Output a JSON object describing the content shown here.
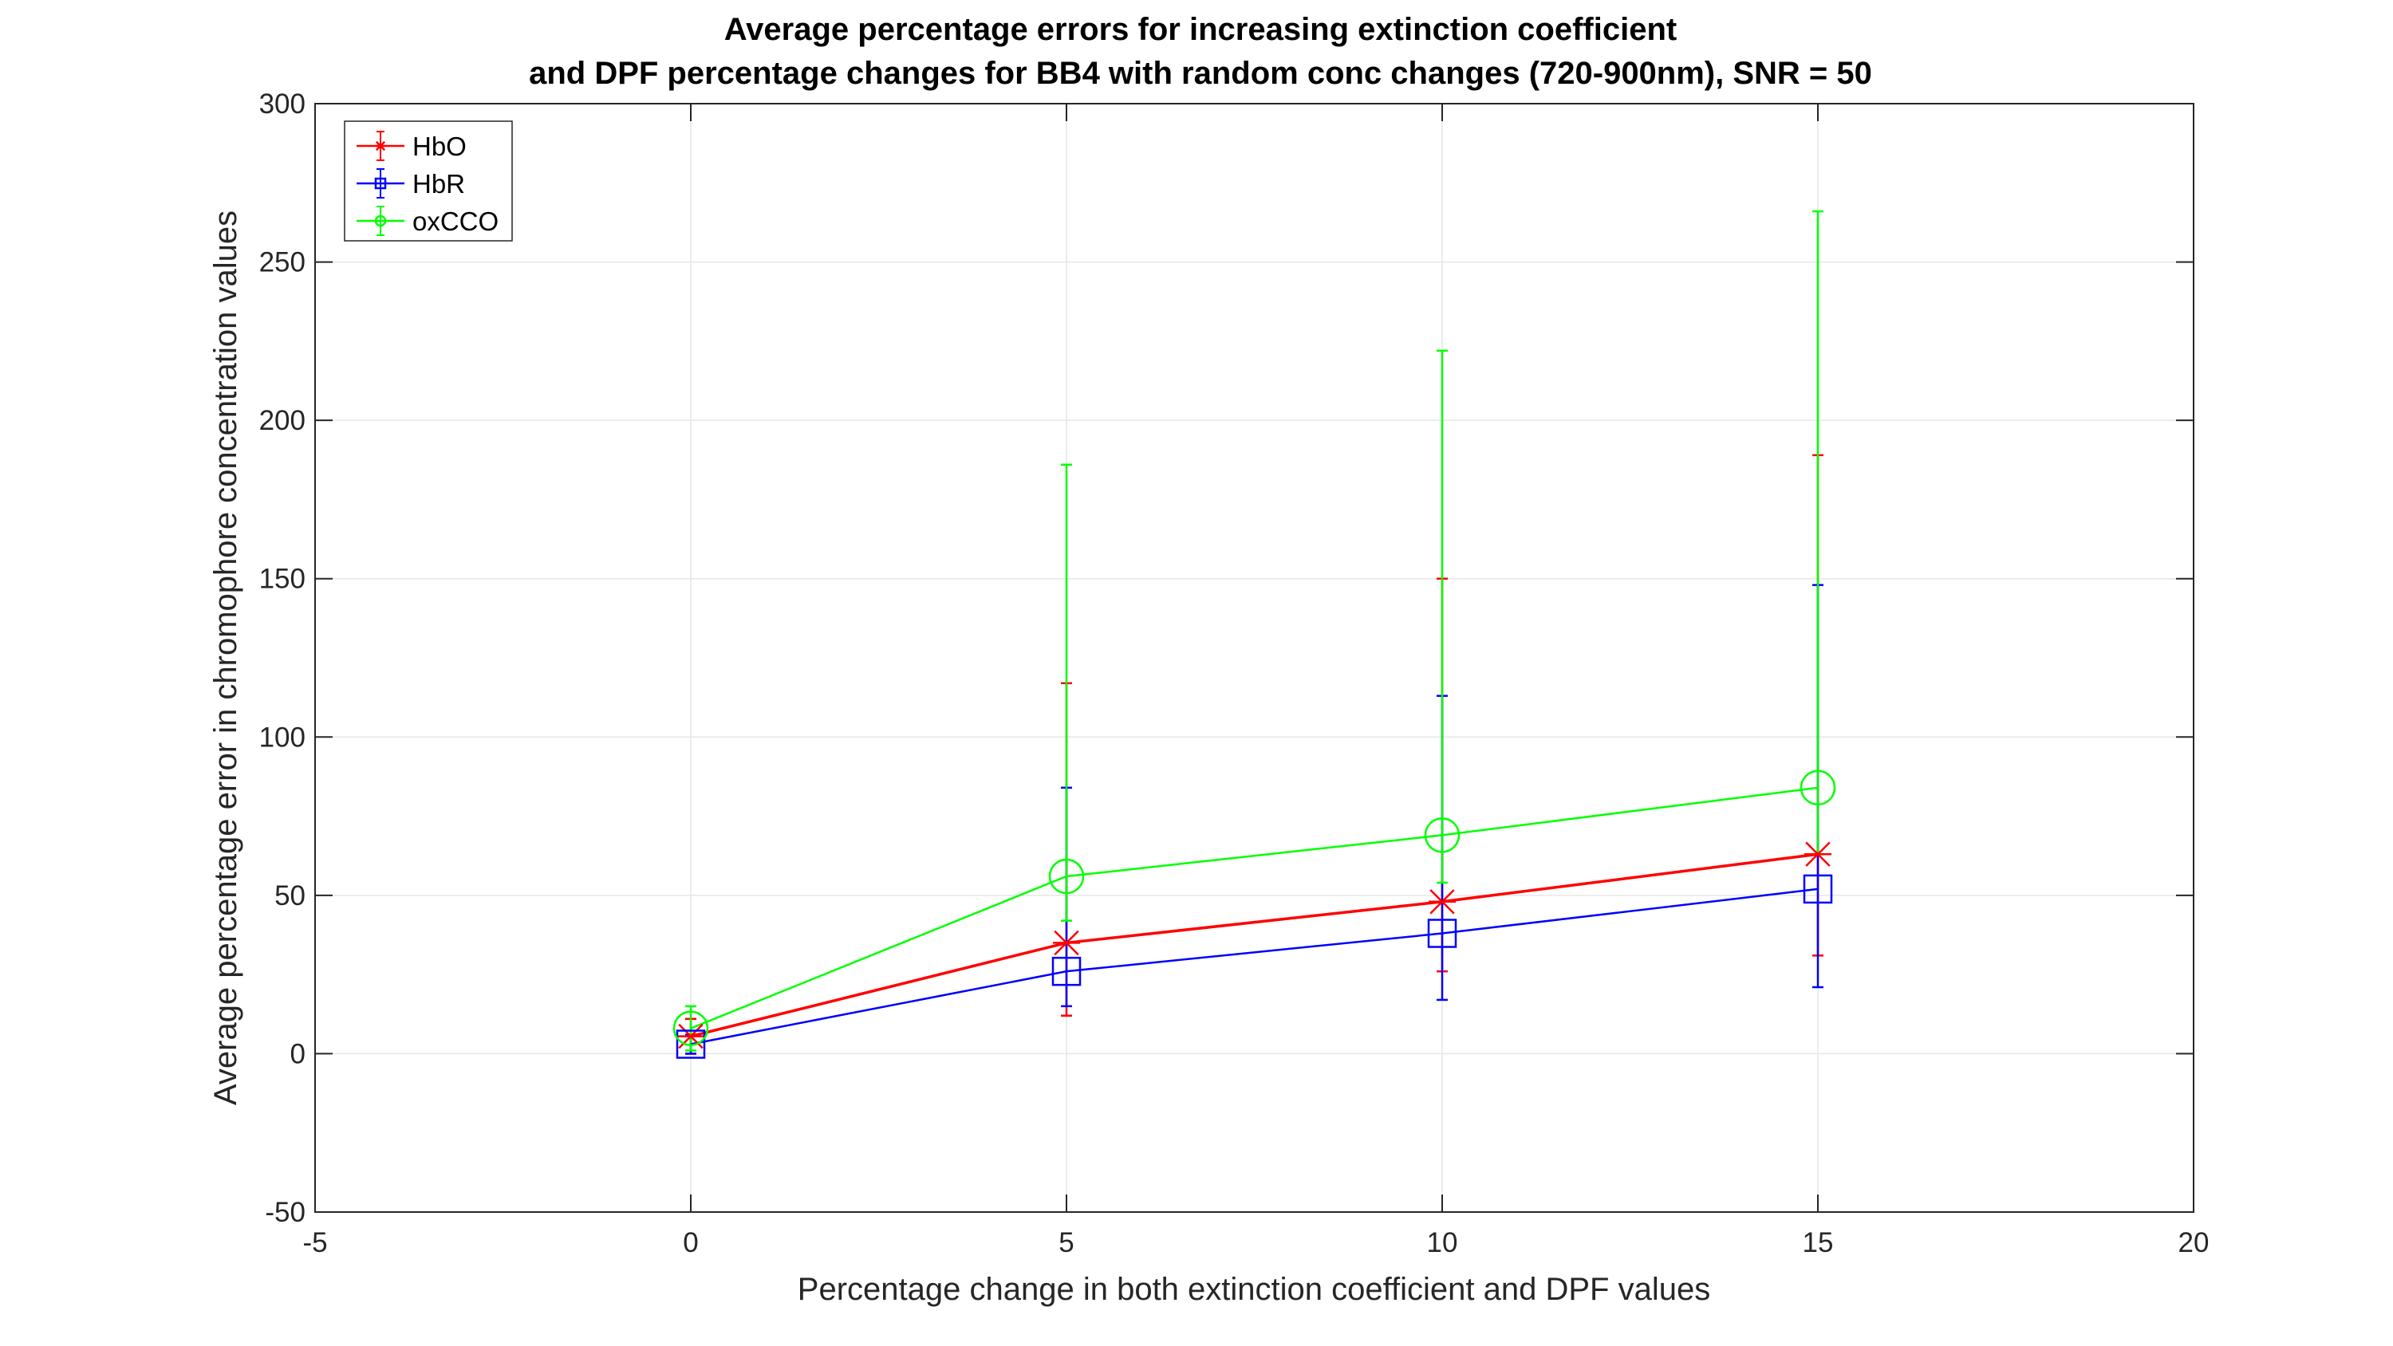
{
  "chart_data": {
    "type": "line",
    "title": "Average percentage errors for increasing extinction coefficient",
    "subtitle": "and DPF percentage changes for BB4 with random conc changes (720-900nm), SNR = 50",
    "xlabel": "Percentage change in both extinction coefficient and DPF values",
    "ylabel": "Average percentage error in chromophore concentration values",
    "xlim": [
      -5,
      20
    ],
    "ylim": [
      -50,
      300
    ],
    "xticks": [
      "-5",
      "0",
      "5",
      "10",
      "15",
      "20"
    ],
    "yticks": [
      "-50",
      "0",
      "50",
      "100",
      "150",
      "200",
      "250",
      "300"
    ],
    "grid": true,
    "legend_position": "top-left",
    "x": [
      0,
      5,
      10,
      15
    ],
    "series": [
      {
        "name": "HbO",
        "color": "#ff0000",
        "marker": "asterisk",
        "values": [
          5.5,
          35,
          48,
          63
        ],
        "error_low": [
          0,
          12,
          26,
          31
        ],
        "error_high": [
          11,
          117,
          150,
          189
        ]
      },
      {
        "name": "HbR",
        "color": "#0000ff",
        "marker": "square",
        "values": [
          3,
          26,
          38,
          52
        ],
        "error_low": [
          0,
          15,
          17,
          21
        ],
        "error_high": [
          6,
          84,
          113,
          148
        ]
      },
      {
        "name": "oxCCO",
        "color": "#00ff00",
        "marker": "circle",
        "values": [
          8,
          56,
          69,
          84
        ],
        "error_low": [
          1,
          42,
          54,
          63
        ],
        "error_high": [
          15,
          186,
          222,
          266
        ]
      }
    ]
  }
}
